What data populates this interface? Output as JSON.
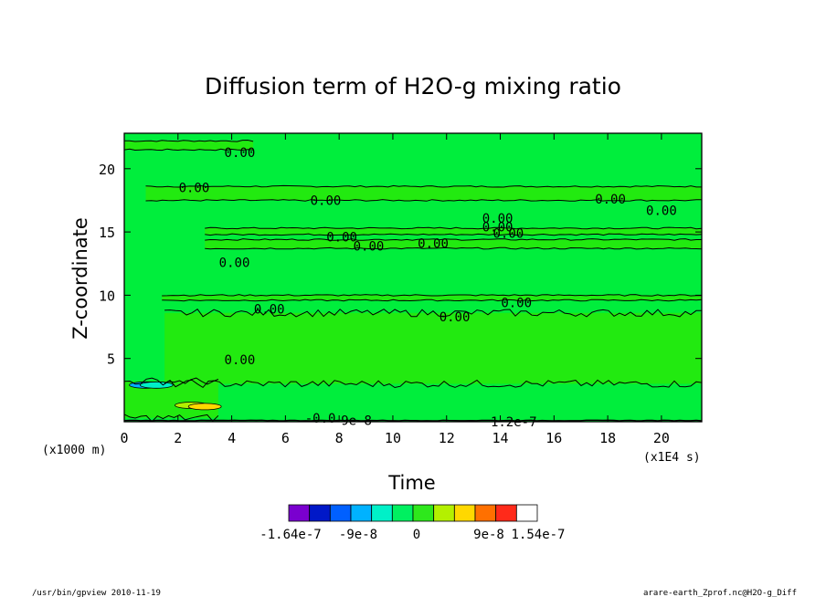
{
  "chart_data": {
    "type": "heatmap",
    "title": "Diffusion term of H2O-g mixing ratio",
    "xlabel": "Time",
    "ylabel": "Z-coordinate",
    "x_unit": "(x1E4 s)",
    "y_unit": "(x1000 m)",
    "xlim": [
      0,
      21.5
    ],
    "ylim": [
      0,
      22.8
    ],
    "x_ticks": [
      "0",
      "2",
      "4",
      "6",
      "8",
      "10",
      "12",
      "14",
      "16",
      "18",
      "20"
    ],
    "y_ticks": [
      "5",
      "10",
      "15",
      "20"
    ],
    "contour_labels": [
      {
        "text": "0.00",
        "x": 4.3,
        "y": 21.3
      },
      {
        "text": "0.00",
        "x": 2.6,
        "y": 18.5
      },
      {
        "text": "0.00",
        "x": 7.5,
        "y": 17.5
      },
      {
        "text": "0.00",
        "x": 18.1,
        "y": 17.6
      },
      {
        "text": "0.00",
        "x": 20.0,
        "y": 16.7
      },
      {
        "text": "0.00",
        "x": 13.9,
        "y": 16.1
      },
      {
        "text": "0.00",
        "x": 13.9,
        "y": 15.4
      },
      {
        "text": "0.00",
        "x": 14.3,
        "y": 14.9
      },
      {
        "text": "0.00",
        "x": 8.1,
        "y": 14.6
      },
      {
        "text": "0.00",
        "x": 9.1,
        "y": 13.9
      },
      {
        "text": "0.00",
        "x": 11.5,
        "y": 14.1
      },
      {
        "text": "0.00",
        "x": 4.1,
        "y": 12.6
      },
      {
        "text": "0.00",
        "x": 5.4,
        "y": 8.9
      },
      {
        "text": "0.00",
        "x": 12.3,
        "y": 8.3
      },
      {
        "text": "0.00",
        "x": 14.6,
        "y": 9.4
      },
      {
        "text": "0.00",
        "x": 4.3,
        "y": 4.9
      },
      {
        "text": "-0.0",
        "x": 7.3,
        "y": 0.3
      },
      {
        "text": "-9e-8",
        "x": 8.5,
        "y": 0.1
      },
      {
        "text": "1.2e-7",
        "x": 14.5,
        "y": 0.0
      }
    ],
    "colorbar": {
      "colors": [
        "#7a00cf",
        "#0018c8",
        "#0060ff",
        "#00b2ff",
        "#00f0c8",
        "#00f060",
        "#2ee81c",
        "#b4f000",
        "#ffd800",
        "#ff7000",
        "#ff2a1a",
        "#ffffff"
      ],
      "labels": [
        "-1.64e-7",
        "-9e-8",
        "0",
        "9e-8",
        "1.54e-7"
      ]
    },
    "field": {
      "dominant_color": "#00ee3c",
      "band_color": "#22ea10",
      "bands": [
        {
          "z": [
            21.5,
            22.2
          ],
          "t": [
            0,
            4.8
          ]
        },
        {
          "z": [
            17.5,
            18.6
          ],
          "t": [
            0.8,
            21.5
          ]
        },
        {
          "z": [
            14.8,
            15.3
          ],
          "t": [
            3.0,
            21.5
          ]
        },
        {
          "z": [
            13.7,
            14.4
          ],
          "t": [
            3.0,
            21.5
          ]
        },
        {
          "z": [
            9.6,
            10.0
          ],
          "t": [
            1.4,
            21.5
          ]
        },
        {
          "z": [
            3.0,
            8.6
          ],
          "t": [
            1.5,
            21.5
          ]
        },
        {
          "z": [
            0.3,
            3.2
          ],
          "t": [
            0,
            3.5
          ]
        }
      ],
      "warm_spots": [
        {
          "t": 2.5,
          "z": 1.3,
          "color": "#b4f000"
        },
        {
          "t": 3.0,
          "z": 1.2,
          "color": "#ffd800"
        }
      ],
      "cool_spots": [
        {
          "t": 0.8,
          "z": 2.9,
          "color": "#00b2ff"
        },
        {
          "t": 1.2,
          "z": 2.9,
          "color": "#00f0c8"
        }
      ]
    }
  },
  "footer": {
    "left": "/usr/bin/gpview  2010-11-19",
    "right": "arare-earth_Zprof.nc@H2O-g_Diff"
  }
}
